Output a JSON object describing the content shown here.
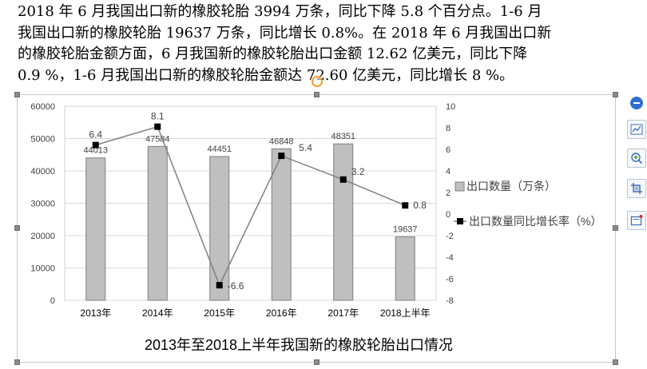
{
  "document": {
    "paragraph_lines": [
      "2018 年 6 月我国出口新的橡胶轮胎 3994 万条，同比下降 5.8 个百分点。1-6 月",
      "我国出口新的橡胶轮胎 19637 万条，同比增长 0.8%。在 2018 年 6 月我国出口新",
      "的橡胶轮胎金额方面，6 月我国新的橡胶轮胎出口金额 12.62 亿美元，同比下降",
      "0.9 %，1-6 月我国出口新的橡胶轮胎金额达 72.60 亿美元，同比增长 8 %。"
    ]
  },
  "chart_data": {
    "type": "bar",
    "title": "2013年至2018上半年我国新的橡胶轮胎出口情况",
    "categories": [
      "2013年",
      "2014年",
      "2015年",
      "2016年",
      "2017年",
      "2018上半年"
    ],
    "series": [
      {
        "name": "出口数量（万条）",
        "type": "bar",
        "axis": "left",
        "color": "#bfbfbf",
        "values": [
          44013,
          47584,
          44451,
          46848,
          48351,
          19637
        ],
        "labels": [
          "44013",
          "47584",
          "44451",
          "46848",
          "48351",
          "19637"
        ]
      },
      {
        "name": "出口数量同比增长率（%）",
        "type": "line",
        "axis": "right",
        "color": "#7f7f7f",
        "values": [
          6.4,
          8.1,
          -6.6,
          5.4,
          3.2,
          0.8
        ],
        "labels": [
          "6.4",
          "8.1",
          "-6.6",
          "5.4",
          "3.2",
          "0.8"
        ]
      }
    ],
    "y_left": {
      "min": 0,
      "max": 60000,
      "ticks": [
        "0",
        "10000",
        "20000",
        "30000",
        "40000",
        "50000",
        "60000"
      ]
    },
    "y_right": {
      "min": -8,
      "max": 10,
      "ticks": [
        "-8",
        "-6",
        "-4",
        "-2",
        "0",
        "2",
        "4",
        "6",
        "8",
        "10"
      ]
    },
    "grid": true,
    "legend_position": "right"
  },
  "toolbar": {
    "buttons": [
      {
        "name": "collapse-toolbar-button",
        "icon": "minus-circle-icon"
      },
      {
        "name": "chart-elements-button",
        "icon": "chart-elements-icon"
      },
      {
        "name": "chart-filter-button",
        "icon": "magnifier-plus-icon"
      },
      {
        "name": "crop-button",
        "icon": "crop-icon"
      },
      {
        "name": "wrap-text-button",
        "icon": "layout-options-icon"
      }
    ],
    "accent": "#2f6fd1"
  }
}
